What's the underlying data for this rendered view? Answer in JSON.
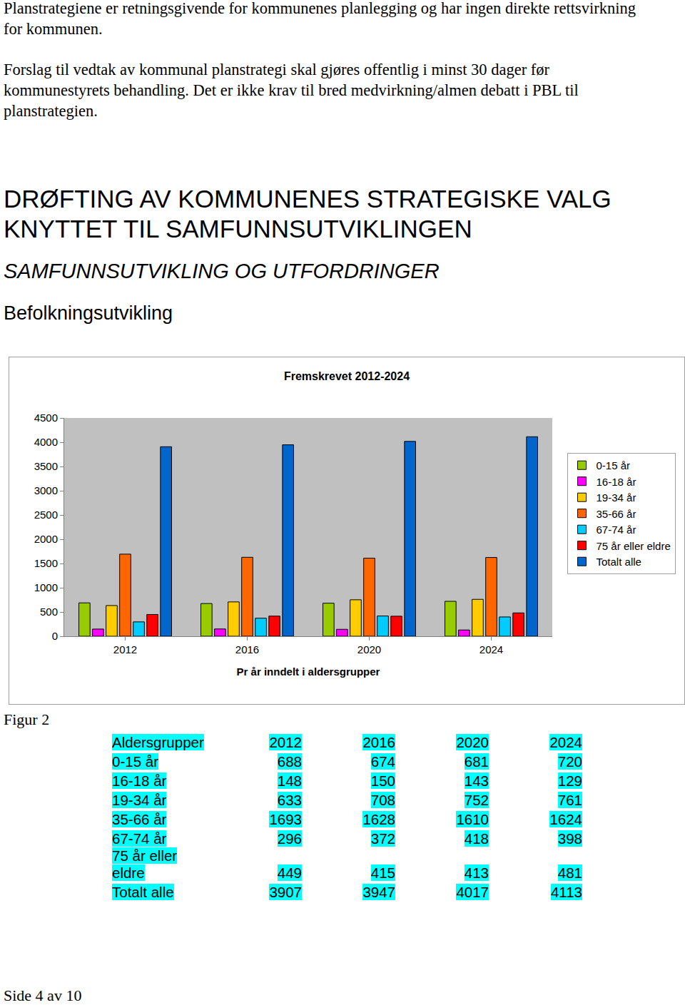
{
  "document": {
    "paragraphs": [
      "Planstrategiene er retningsgivende for kommunenes planlegging og har ingen direkte rettsvirkning for kommunen.",
      "Forslag til vedtak av kommunal planstrategi skal gjøres offentlig i minst 30 dager før kommunestyrets behandling. Det er ikke krav til bred medvirkning/almen debatt i PBL til planstrategien."
    ],
    "heading": "DRØFTING AV KOMMUNENES STRATEGISKE VALG KNYTTET TIL SAMFUNNSUTVIKLINGEN",
    "subheading": "SAMFUNNSUTVIKLING OG UTFORDRINGER",
    "section": "Befolkningsutvikling",
    "figure_caption": "Figur 2",
    "table": {
      "header": [
        "Aldersgrupper",
        "2012",
        "2016",
        "2020",
        "2024"
      ],
      "rows": [
        [
          "0-15 år",
          "688",
          "674",
          "681",
          "720"
        ],
        [
          "16-18 år",
          "148",
          "150",
          "143",
          "129"
        ],
        [
          "19-34 år",
          "633",
          "708",
          "752",
          "761"
        ],
        [
          "35-66 år",
          "1693",
          "1628",
          "1610",
          "1624"
        ],
        [
          "67-74 år",
          "296",
          "372",
          "418",
          "398"
        ],
        [
          "75 år eller eldre",
          "449",
          "415",
          "413",
          "481"
        ],
        [
          "Totalt alle",
          "3907",
          "3947",
          "4017",
          "4113"
        ]
      ]
    },
    "footer": "Side 4 av 10"
  },
  "chart_data": {
    "type": "bar",
    "title": "Fremskrevet 2012-2024",
    "x_label": "Pr år inndelt i aldersgrupper",
    "categories": [
      "2012",
      "2016",
      "2020",
      "2024"
    ],
    "series": [
      {
        "name": "0-15 år",
        "color": "#99cc00",
        "values": [
          688,
          674,
          681,
          720
        ]
      },
      {
        "name": "16-18 år",
        "color": "#ff00ff",
        "values": [
          148,
          150,
          143,
          129
        ]
      },
      {
        "name": "19-34 år",
        "color": "#ffcc00",
        "values": [
          633,
          708,
          752,
          761
        ]
      },
      {
        "name": "35-66 år",
        "color": "#ff6600",
        "values": [
          1693,
          1628,
          1610,
          1624
        ]
      },
      {
        "name": "67-74 år",
        "color": "#00ccff",
        "values": [
          296,
          372,
          418,
          398
        ]
      },
      {
        "name": "75 år eller eldre",
        "color": "#ff0000",
        "values": [
          449,
          415,
          413,
          481
        ]
      },
      {
        "name": "Totalt alle",
        "color": "#0066cc",
        "values": [
          3907,
          3947,
          4017,
          4113
        ]
      }
    ],
    "ylim": [
      0,
      4500
    ],
    "yticks": [
      0,
      500,
      1000,
      1500,
      2000,
      2500,
      3000,
      3500,
      4000,
      4500
    ],
    "grid": false,
    "legend": "right"
  }
}
